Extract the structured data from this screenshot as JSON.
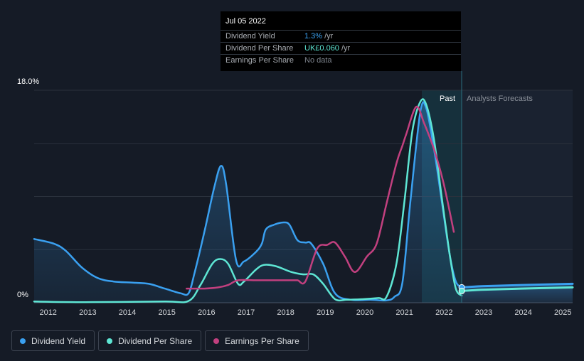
{
  "tooltip": {
    "date": "Jul 05 2022",
    "rows": [
      {
        "label": "Dividend Yield",
        "value": "1.3%",
        "unit": "/yr",
        "color": "#3aa0f0"
      },
      {
        "label": "Dividend Per Share",
        "value": "UK£0.060",
        "unit": "/yr",
        "color": "#5ee6d4"
      },
      {
        "label": "Earnings Per Share",
        "value": "No data",
        "unit": "",
        "color": "#7d838c"
      }
    ]
  },
  "legend": [
    {
      "label": "Dividend Yield",
      "color": "#3aa0f0"
    },
    {
      "label": "Dividend Per Share",
      "color": "#5ee6d4"
    },
    {
      "label": "Earnings Per Share",
      "color": "#c2407f"
    }
  ],
  "chart_data": {
    "type": "line",
    "title": "",
    "xlabel": "",
    "ylabel": "",
    "ylim": [
      0,
      18
    ],
    "y_tick_labels": [
      "0%",
      "18.0%"
    ],
    "x_range": [
      2011.7,
      2025.3
    ],
    "x_ticks": [
      "2012",
      "2013",
      "2014",
      "2015",
      "2016",
      "2017",
      "2018",
      "2019",
      "2020",
      "2021",
      "2022",
      "2023",
      "2024",
      "2025"
    ],
    "grid": true,
    "past_label": "Past",
    "forecast_label": "Analysts Forecasts",
    "past_boundary_x": 2022.5,
    "series": [
      {
        "name": "Dividend Yield",
        "color": "#3aa0f0",
        "area": true,
        "points": [
          [
            2011.7,
            5.4
          ],
          [
            2012.2,
            5.0
          ],
          [
            2012.5,
            4.4
          ],
          [
            2012.9,
            3.0
          ],
          [
            2013.3,
            2.1
          ],
          [
            2013.7,
            1.8
          ],
          [
            2014.2,
            1.7
          ],
          [
            2014.6,
            1.6
          ],
          [
            2015.0,
            1.2
          ],
          [
            2015.4,
            0.8
          ],
          [
            2015.6,
            0.8
          ],
          [
            2015.75,
            2.5
          ],
          [
            2016.0,
            6.0
          ],
          [
            2016.25,
            9.8
          ],
          [
            2016.42,
            11.6
          ],
          [
            2016.55,
            10.0
          ],
          [
            2016.8,
            3.6
          ],
          [
            2017.0,
            3.5
          ],
          [
            2017.3,
            4.3
          ],
          [
            2017.45,
            5.0
          ],
          [
            2017.55,
            6.2
          ],
          [
            2017.75,
            6.6
          ],
          [
            2018.0,
            6.8
          ],
          [
            2018.15,
            6.6
          ],
          [
            2018.35,
            5.3
          ],
          [
            2018.55,
            5.1
          ],
          [
            2018.7,
            5.0
          ],
          [
            2019.0,
            3.3
          ],
          [
            2019.3,
            0.8
          ],
          [
            2019.7,
            0.25
          ],
          [
            2020.2,
            0.25
          ],
          [
            2020.6,
            0.2
          ],
          [
            2020.8,
            0.5
          ],
          [
            2021.0,
            1.7
          ],
          [
            2021.2,
            8.5
          ],
          [
            2021.45,
            16.1
          ],
          [
            2021.6,
            16.5
          ],
          [
            2021.8,
            13.0
          ],
          [
            2022.0,
            8.5
          ],
          [
            2022.2,
            4.0
          ],
          [
            2022.35,
            1.8
          ],
          [
            2022.5,
            1.3
          ]
        ]
      },
      {
        "name": "Dividend Per Share",
        "color": "#5ee6d4",
        "area": false,
        "points": [
          [
            2011.7,
            0.1
          ],
          [
            2013.0,
            0.05
          ],
          [
            2015.0,
            0.1
          ],
          [
            2015.6,
            0.15
          ],
          [
            2015.9,
            1.5
          ],
          [
            2016.2,
            3.3
          ],
          [
            2016.4,
            3.7
          ],
          [
            2016.6,
            3.3
          ],
          [
            2016.85,
            1.6
          ],
          [
            2017.0,
            1.8
          ],
          [
            2017.3,
            2.8
          ],
          [
            2017.5,
            3.2
          ],
          [
            2017.8,
            3.1
          ],
          [
            2018.2,
            2.6
          ],
          [
            2018.5,
            2.4
          ],
          [
            2018.75,
            2.4
          ],
          [
            2019.0,
            1.6
          ],
          [
            2019.3,
            0.3
          ],
          [
            2019.6,
            0.25
          ],
          [
            2020.0,
            0.3
          ],
          [
            2020.4,
            0.4
          ],
          [
            2020.6,
            0.5
          ],
          [
            2020.85,
            3.3
          ],
          [
            2021.05,
            8.5
          ],
          [
            2021.25,
            14.5
          ],
          [
            2021.45,
            17.0
          ],
          [
            2021.6,
            16.8
          ],
          [
            2021.8,
            13.8
          ],
          [
            2022.0,
            8.8
          ],
          [
            2022.2,
            4.0
          ],
          [
            2022.35,
            1.2
          ],
          [
            2022.5,
            0.6
          ]
        ]
      },
      {
        "name": "Earnings Per Share",
        "color": "#c2407f",
        "area": false,
        "points": [
          [
            2015.55,
            1.2
          ],
          [
            2016.0,
            1.2
          ],
          [
            2016.35,
            1.3
          ],
          [
            2016.6,
            1.5
          ],
          [
            2016.85,
            1.9
          ],
          [
            2017.3,
            1.9
          ],
          [
            2017.8,
            1.9
          ],
          [
            2018.15,
            1.9
          ],
          [
            2018.35,
            1.9
          ],
          [
            2018.55,
            1.8
          ],
          [
            2018.85,
            4.6
          ],
          [
            2019.1,
            4.9
          ],
          [
            2019.3,
            5.1
          ],
          [
            2019.55,
            3.9
          ],
          [
            2019.8,
            2.6
          ],
          [
            2020.1,
            3.9
          ],
          [
            2020.35,
            5.0
          ],
          [
            2020.6,
            8.4
          ],
          [
            2020.85,
            11.8
          ],
          [
            2021.0,
            13.3
          ],
          [
            2021.1,
            14.3
          ],
          [
            2021.35,
            16.6
          ],
          [
            2021.55,
            15.2
          ],
          [
            2021.8,
            13.0
          ],
          [
            2022.05,
            10.0
          ],
          [
            2022.3,
            6.0
          ]
        ]
      },
      {
        "name": "Dividend Yield forecast",
        "color": "#3aa0f0",
        "area": true,
        "forecast": true,
        "points": [
          [
            2022.5,
            1.3
          ],
          [
            2023.0,
            1.4
          ],
          [
            2024.0,
            1.5
          ],
          [
            2025.3,
            1.6
          ]
        ]
      },
      {
        "name": "Dividend Per Share forecast",
        "color": "#5ee6d4",
        "area": false,
        "forecast": true,
        "points": [
          [
            2022.5,
            1.0
          ],
          [
            2023.0,
            1.1
          ],
          [
            2024.0,
            1.2
          ],
          [
            2025.3,
            1.3
          ]
        ]
      }
    ]
  }
}
